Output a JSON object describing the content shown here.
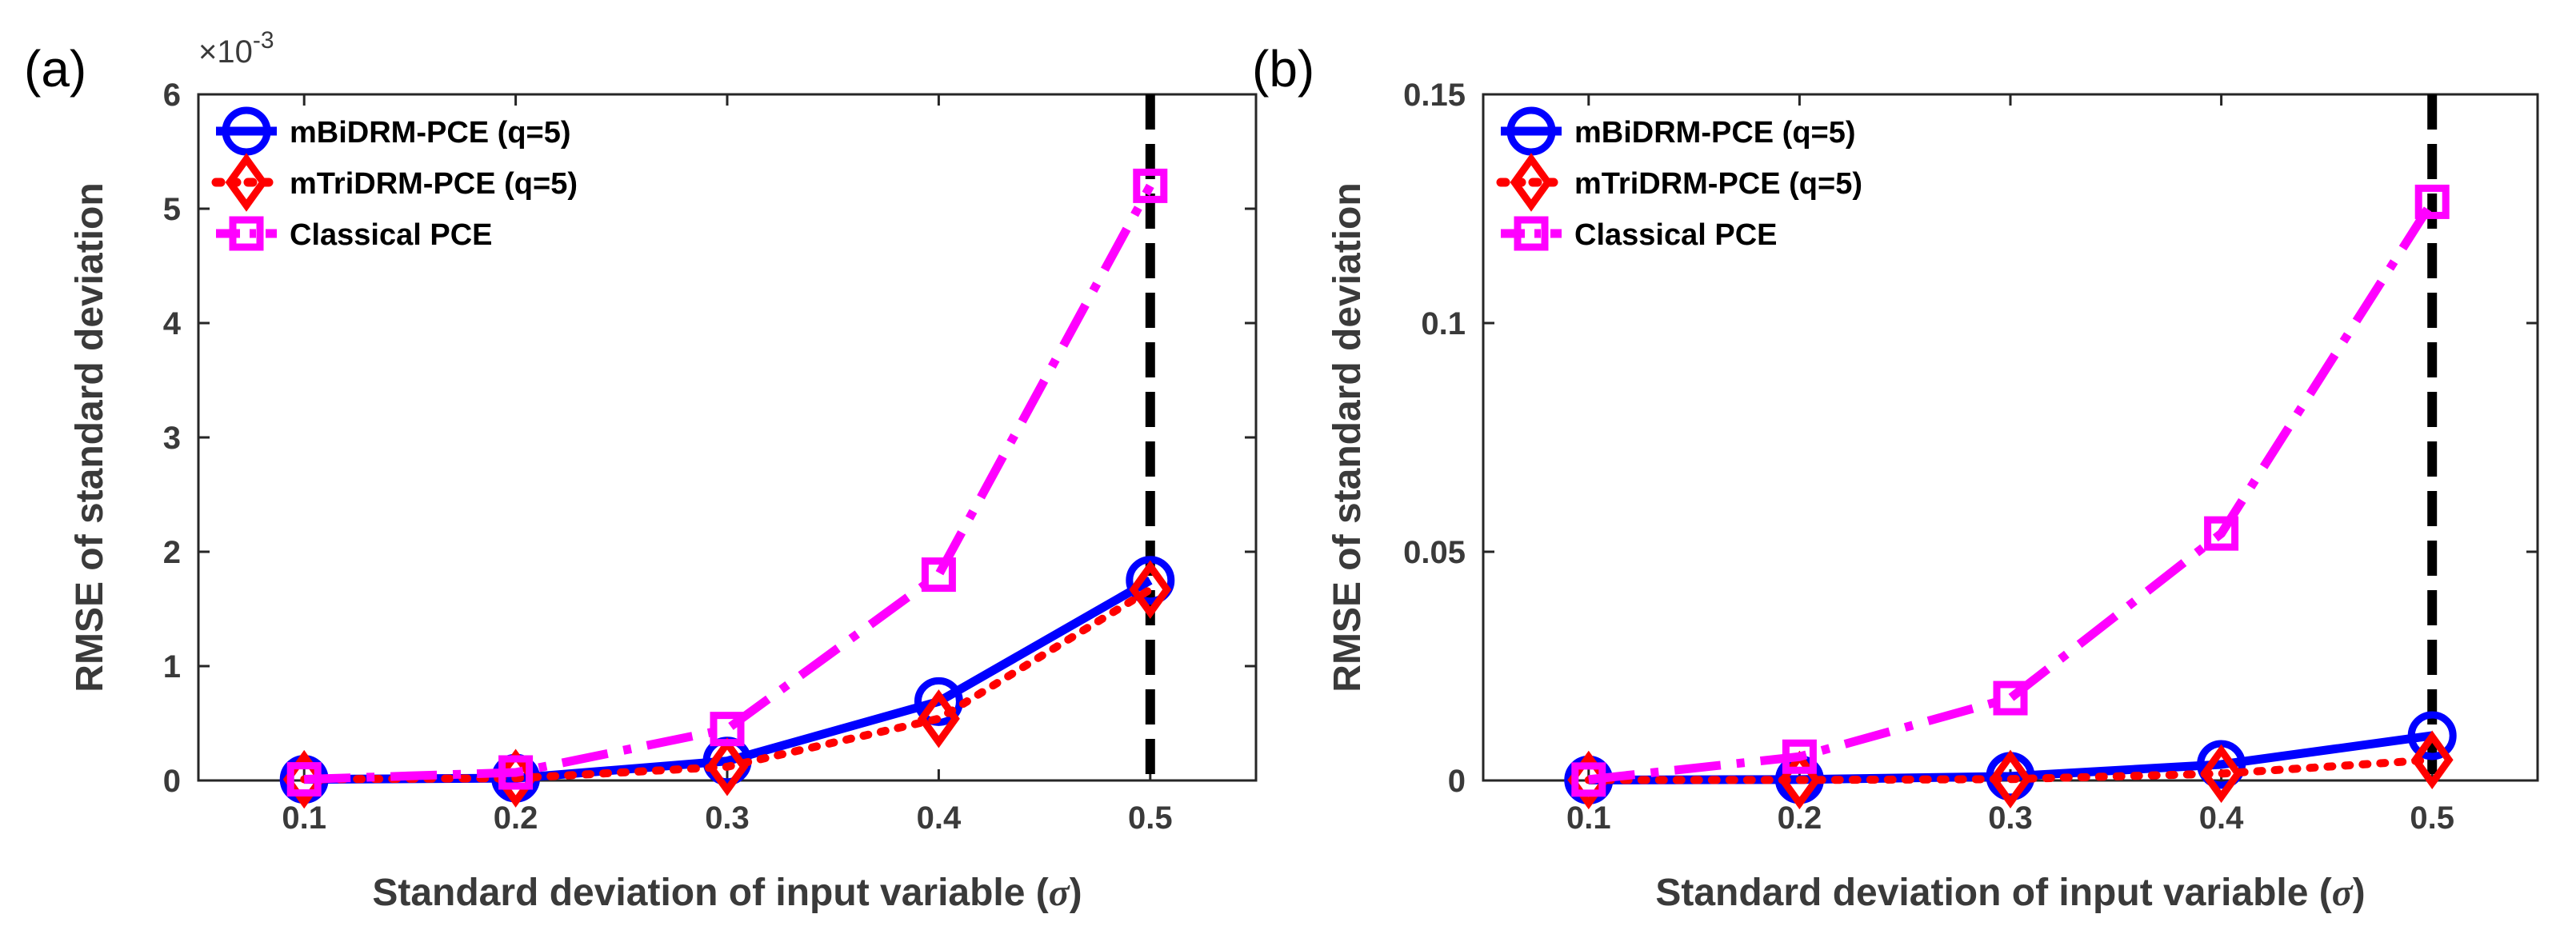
{
  "chart_data": [
    {
      "panel_label": "(a)",
      "type": "line",
      "x": [
        0.1,
        0.2,
        0.3,
        0.4,
        0.5
      ],
      "xlim": [
        0.05,
        0.55
      ],
      "ylim": [
        0,
        0.006
      ],
      "y_exponent_label": "×10",
      "y_exponent_power": "-3",
      "x_ticks": [
        0.1,
        0.2,
        0.3,
        0.4,
        0.5
      ],
      "x_tick_labels": [
        "0.1",
        "0.2",
        "0.3",
        "0.4",
        "0.5"
      ],
      "y_ticks": [
        0,
        0.001,
        0.002,
        0.003,
        0.004,
        0.005,
        0.006
      ],
      "y_tick_labels": [
        "0",
        "1",
        "2",
        "3",
        "4",
        "5",
        "6"
      ],
      "xlabel": "Standard deviation of input variable (",
      "xlabel_symbol": "σ",
      "xlabel_end": ")",
      "ylabel": "RMSE of standard deviation",
      "legend_position": "top-left",
      "vline_x": 0.5,
      "series": [
        {
          "name": "mBiDRM-PCE (q=5)",
          "color": "#0000ff",
          "marker": "circle",
          "line_style": "solid",
          "values": [
            1e-05,
            2e-05,
            0.00017,
            0.00069,
            0.00175
          ]
        },
        {
          "name": "mTriDRM-PCE (q=5)",
          "color": "#ff0000",
          "marker": "diamond",
          "line_style": "dotted",
          "values": [
            1e-05,
            2e-05,
            0.00012,
            0.00054,
            0.00167
          ]
        },
        {
          "name": "Classical PCE",
          "color": "#ff00ff",
          "marker": "square",
          "line_style": "dashdot",
          "values": [
            1e-05,
            7e-05,
            0.00045,
            0.0018,
            0.0052
          ]
        }
      ]
    },
    {
      "panel_label": "(b)",
      "type": "line",
      "x": [
        0.1,
        0.2,
        0.3,
        0.4,
        0.5
      ],
      "xlim": [
        0.05,
        0.55
      ],
      "ylim": [
        0,
        0.15
      ],
      "x_ticks": [
        0.1,
        0.2,
        0.3,
        0.4,
        0.5
      ],
      "x_tick_labels": [
        "0.1",
        "0.2",
        "0.3",
        "0.4",
        "0.5"
      ],
      "y_ticks": [
        0,
        0.05,
        0.1,
        0.15
      ],
      "y_tick_labels": [
        "0",
        "0.05",
        "0.1",
        "0.15"
      ],
      "xlabel": "Standard deviation of input variable (",
      "xlabel_symbol": "σ",
      "xlabel_end": ")",
      "ylabel": "RMSE of standard deviation",
      "legend_position": "top-left",
      "vline_x": 0.5,
      "series": [
        {
          "name": "mBiDRM-PCE (q=5)",
          "color": "#0000ff",
          "marker": "circle",
          "line_style": "solid",
          "values": [
            0.0001,
            0.0002,
            0.0009,
            0.0035,
            0.0098
          ]
        },
        {
          "name": "mTriDRM-PCE (q=5)",
          "color": "#ff0000",
          "marker": "diamond",
          "line_style": "dotted",
          "values": [
            0.0001,
            0.0001,
            0.0003,
            0.0015,
            0.0045
          ]
        },
        {
          "name": "Classical PCE",
          "color": "#ff00ff",
          "marker": "square",
          "line_style": "dashdot",
          "values": [
            0.0002,
            0.0052,
            0.018,
            0.054,
            0.1265
          ]
        }
      ]
    }
  ]
}
